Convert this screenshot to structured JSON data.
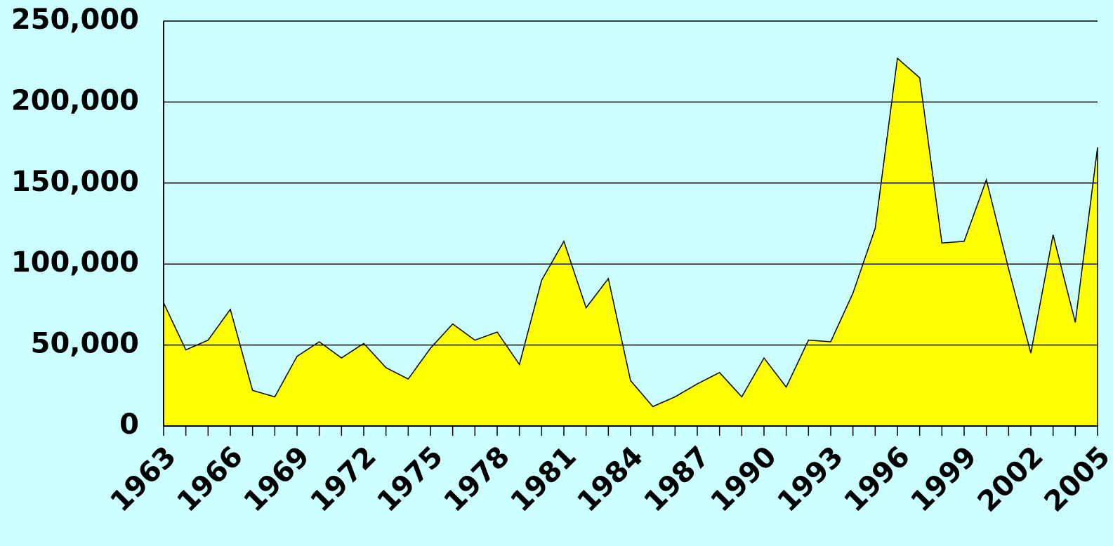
{
  "chart_data": {
    "type": "area",
    "x": [
      1963,
      1964,
      1965,
      1966,
      1967,
      1968,
      1969,
      1970,
      1971,
      1972,
      1973,
      1974,
      1975,
      1976,
      1977,
      1978,
      1979,
      1980,
      1981,
      1982,
      1983,
      1984,
      1985,
      1986,
      1987,
      1988,
      1989,
      1990,
      1991,
      1992,
      1993,
      1994,
      1995,
      1996,
      1997,
      1998,
      1999,
      2000,
      2001,
      2002,
      2003,
      2004,
      2005
    ],
    "values": [
      76000,
      47000,
      53000,
      72000,
      22000,
      18000,
      43000,
      52000,
      42000,
      51000,
      36000,
      29000,
      48000,
      63000,
      53000,
      58000,
      38000,
      90000,
      114000,
      73000,
      91000,
      28000,
      12000,
      18000,
      26000,
      33000,
      18000,
      42000,
      24000,
      53000,
      52000,
      82000,
      122000,
      227000,
      215000,
      113000,
      114000,
      152000,
      97000,
      45000,
      118000,
      64000,
      172000
    ],
    "color": "#ffff00",
    "xlim": [
      1963,
      2005
    ],
    "xticks": [
      1963,
      1966,
      1969,
      1972,
      1975,
      1978,
      1981,
      1984,
      1987,
      1990,
      1993,
      1996,
      1999,
      2002,
      2005
    ],
    "ylim": [
      0,
      250000
    ],
    "yticks": [
      0,
      {
        "value": 50000,
        "label": "50,000"
      },
      {
        "value": 100000,
        "label": "100,000"
      },
      {
        "value": 150000,
        "label": "150,000"
      },
      {
        "value": 200000,
        "label": "200,000"
      },
      {
        "value": 250000,
        "label": "250,000"
      }
    ],
    "grid": true
  }
}
